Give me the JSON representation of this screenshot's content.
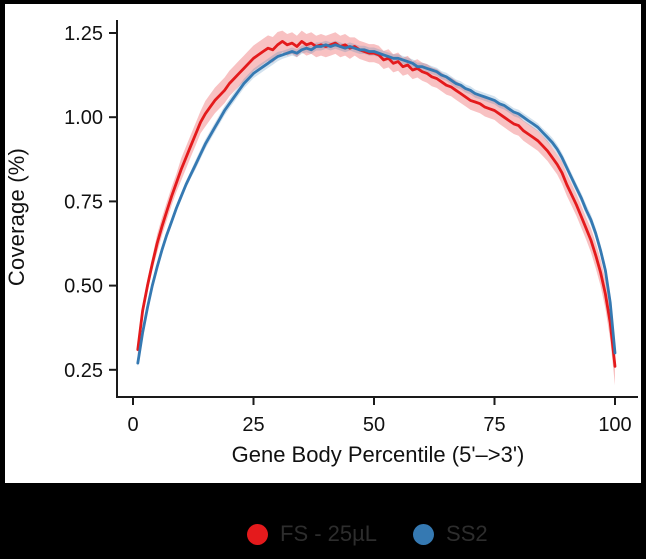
{
  "window": {
    "background": "#000000",
    "panel_background": "#ffffff"
  },
  "chart_data": {
    "type": "line",
    "title": "",
    "xlabel": "Gene Body Percentile (5'–>3')",
    "ylabel": "Coverage (%)",
    "x_ticks": [
      0,
      25,
      50,
      75,
      100
    ],
    "y_ticks": [
      0.25,
      0.5,
      0.75,
      1.0,
      1.25
    ],
    "xlim": [
      0,
      100
    ],
    "ylim": [
      0.17,
      1.29
    ],
    "grid": false,
    "legend_position": "bottom",
    "axis_color": "#1a1a1a",
    "tick_label_color": "#111111",
    "x": [
      1,
      2,
      3,
      4,
      5,
      6,
      7,
      8,
      9,
      10,
      11,
      12,
      13,
      14,
      15,
      16,
      17,
      18,
      19,
      20,
      21,
      22,
      23,
      24,
      25,
      26,
      27,
      28,
      29,
      30,
      31,
      32,
      33,
      34,
      35,
      36,
      37,
      38,
      39,
      40,
      41,
      42,
      43,
      44,
      45,
      46,
      47,
      48,
      49,
      50,
      51,
      52,
      53,
      54,
      55,
      56,
      57,
      58,
      59,
      60,
      61,
      62,
      63,
      64,
      65,
      66,
      67,
      68,
      69,
      70,
      71,
      72,
      73,
      74,
      75,
      76,
      77,
      78,
      79,
      80,
      81,
      82,
      83,
      84,
      85,
      86,
      87,
      88,
      89,
      90,
      91,
      92,
      93,
      94,
      95,
      96,
      97,
      98,
      99,
      100
    ],
    "series": [
      {
        "name": "FS - 25µL",
        "color": "#e41a1c",
        "ribbon_color": "rgba(228,26,28,0.27)",
        "values": [
          0.31,
          0.425,
          0.5,
          0.565,
          0.625,
          0.675,
          0.72,
          0.765,
          0.805,
          0.845,
          0.88,
          0.915,
          0.95,
          0.985,
          1.01,
          1.03,
          1.05,
          1.065,
          1.08,
          1.1,
          1.115,
          1.13,
          1.145,
          1.16,
          1.175,
          1.185,
          1.195,
          1.205,
          1.2,
          1.215,
          1.225,
          1.215,
          1.22,
          1.21,
          1.225,
          1.215,
          1.22,
          1.21,
          1.215,
          1.21,
          1.215,
          1.22,
          1.21,
          1.215,
          1.205,
          1.21,
          1.2,
          1.195,
          1.19,
          1.19,
          1.185,
          1.17,
          1.175,
          1.16,
          1.165,
          1.15,
          1.155,
          1.14,
          1.145,
          1.135,
          1.13,
          1.12,
          1.115,
          1.105,
          1.095,
          1.09,
          1.08,
          1.07,
          1.06,
          1.05,
          1.045,
          1.04,
          1.03,
          1.025,
          1.02,
          1.01,
          1.0,
          0.99,
          0.98,
          0.975,
          0.96,
          0.95,
          0.94,
          0.93,
          0.915,
          0.9,
          0.88,
          0.86,
          0.835,
          0.8,
          0.77,
          0.74,
          0.705,
          0.67,
          0.635,
          0.59,
          0.54,
          0.475,
          0.39,
          0.26
        ],
        "ribbon_halfwidth": [
          0.02,
          0.02,
          0.02,
          0.02,
          0.027,
          0.027,
          0.027,
          0.027,
          0.027,
          0.033,
          0.033,
          0.033,
          0.033,
          0.033,
          0.038,
          0.038,
          0.038,
          0.038,
          0.038,
          0.038,
          0.038,
          0.038,
          0.038,
          0.038,
          0.038,
          0.038,
          0.038,
          0.038,
          0.038,
          0.038,
          0.032,
          0.032,
          0.032,
          0.032,
          0.032,
          0.032,
          0.032,
          0.032,
          0.032,
          0.032,
          0.032,
          0.032,
          0.032,
          0.032,
          0.032,
          0.027,
          0.027,
          0.027,
          0.027,
          0.027,
          0.027,
          0.027,
          0.027,
          0.027,
          0.027,
          0.027,
          0.027,
          0.027,
          0.027,
          0.027,
          0.028,
          0.028,
          0.028,
          0.028,
          0.028,
          0.028,
          0.028,
          0.028,
          0.028,
          0.028,
          0.028,
          0.028,
          0.028,
          0.028,
          0.028,
          0.03,
          0.03,
          0.03,
          0.03,
          0.03,
          0.03,
          0.03,
          0.03,
          0.03,
          0.03,
          0.03,
          0.03,
          0.03,
          0.033,
          0.033,
          0.033,
          0.033,
          0.033,
          0.033,
          0.036,
          0.038,
          0.04,
          0.044,
          0.05,
          0.056
        ]
      },
      {
        "name": "SS2",
        "color": "#3579b2",
        "ribbon_color": "rgba(53,121,178,0.22)",
        "values": [
          0.27,
          0.36,
          0.435,
          0.5,
          0.555,
          0.605,
          0.65,
          0.69,
          0.73,
          0.765,
          0.8,
          0.83,
          0.86,
          0.89,
          0.92,
          0.945,
          0.97,
          0.995,
          1.02,
          1.04,
          1.06,
          1.08,
          1.1,
          1.115,
          1.13,
          1.14,
          1.15,
          1.16,
          1.17,
          1.18,
          1.185,
          1.19,
          1.195,
          1.19,
          1.2,
          1.205,
          1.2,
          1.21,
          1.21,
          1.215,
          1.21,
          1.215,
          1.21,
          1.205,
          1.21,
          1.205,
          1.2,
          1.2,
          1.195,
          1.195,
          1.19,
          1.185,
          1.18,
          1.175,
          1.175,
          1.17,
          1.165,
          1.16,
          1.15,
          1.15,
          1.145,
          1.14,
          1.135,
          1.125,
          1.12,
          1.11,
          1.1,
          1.095,
          1.085,
          1.08,
          1.07,
          1.065,
          1.06,
          1.055,
          1.05,
          1.04,
          1.035,
          1.025,
          1.015,
          1.01,
          1.0,
          0.99,
          0.98,
          0.97,
          0.955,
          0.94,
          0.925,
          0.905,
          0.88,
          0.85,
          0.82,
          0.79,
          0.76,
          0.725,
          0.695,
          0.655,
          0.605,
          0.545,
          0.45,
          0.3
        ],
        "ribbon_halfwidth": [
          0.013,
          0.013,
          0.013,
          0.013,
          0.011,
          0.011,
          0.011,
          0.011,
          0.011,
          0.011,
          0.011,
          0.011,
          0.014,
          0.014,
          0.014,
          0.014,
          0.014,
          0.014,
          0.014,
          0.014,
          0.014,
          0.014,
          0.014,
          0.014,
          0.014,
          0.014,
          0.014,
          0.014,
          0.014,
          0.014,
          0.012,
          0.012,
          0.012,
          0.012,
          0.012,
          0.012,
          0.012,
          0.012,
          0.012,
          0.012,
          0.012,
          0.012,
          0.012,
          0.012,
          0.012,
          0.012,
          0.012,
          0.012,
          0.012,
          0.012,
          0.012,
          0.012,
          0.012,
          0.012,
          0.012,
          0.012,
          0.012,
          0.012,
          0.012,
          0.012,
          0.012,
          0.012,
          0.012,
          0.012,
          0.012,
          0.012,
          0.012,
          0.012,
          0.012,
          0.012,
          0.012,
          0.012,
          0.012,
          0.012,
          0.012,
          0.012,
          0.012,
          0.012,
          0.012,
          0.012,
          0.012,
          0.012,
          0.012,
          0.012,
          0.012,
          0.014,
          0.014,
          0.014,
          0.014,
          0.014,
          0.014,
          0.014,
          0.014,
          0.016,
          0.016,
          0.016,
          0.018,
          0.02,
          0.023,
          0.026
        ]
      }
    ]
  },
  "legend": {
    "items": [
      {
        "label": "FS - 25µL",
        "color": "#e41a1c"
      },
      {
        "label": "SS2",
        "color": "#3579b2"
      }
    ]
  }
}
